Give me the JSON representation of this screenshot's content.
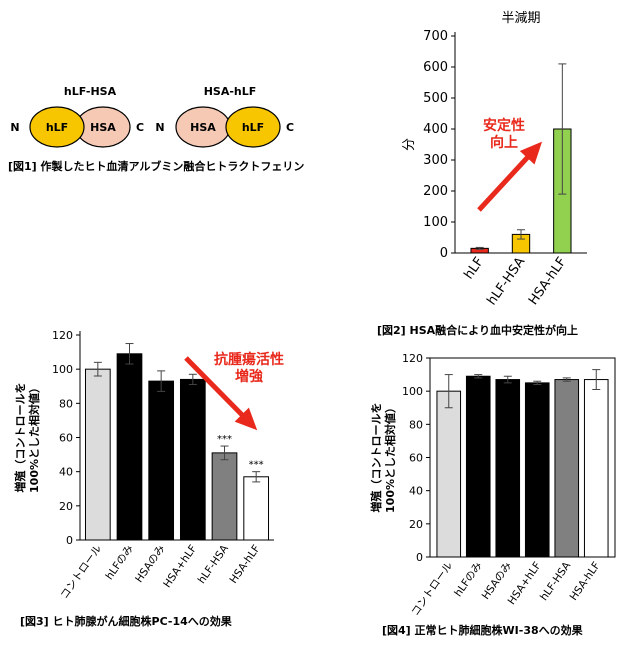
{
  "fig1": {
    "caption": "[図1] 作製したヒト血清アルブミン融合ヒトラクトフェリン",
    "constructs": [
      {
        "title": "hLF-HSA",
        "n_label": "N",
        "c_label": "C",
        "domains": [
          {
            "label": "hLF",
            "color": "#f7c600"
          },
          {
            "label": "HSA",
            "color": "#f5c9b4"
          }
        ]
      },
      {
        "title": "HSA-hLF",
        "n_label": "N",
        "c_label": "C",
        "domains": [
          {
            "label": "HSA",
            "color": "#f5c9b4"
          },
          {
            "label": "hLF",
            "color": "#f7c600"
          }
        ]
      }
    ]
  },
  "chart_data": [
    {
      "id": "fig2",
      "type": "bar",
      "title": "半減期",
      "ylabel": "分",
      "xlabel": "",
      "ylim": [
        0,
        700
      ],
      "yticks": [
        0,
        100,
        200,
        300,
        400,
        500,
        600,
        700
      ],
      "categories": [
        "hLF",
        "hLF-HSA",
        "HSA-hLF"
      ],
      "values": [
        15,
        60,
        400
      ],
      "errors": [
        3,
        15,
        210
      ],
      "colors": [
        "#e8291c",
        "#f7c600",
        "#92d050"
      ],
      "annotation": [
        "安定性",
        "向上"
      ],
      "caption": "[図2] HSA融合により血中安定性が向上"
    },
    {
      "id": "fig3",
      "type": "bar",
      "title": "",
      "ylabel": "増殖（コントロールを100%とした相対値）",
      "xlabel": "",
      "ylim": [
        0,
        120
      ],
      "yticks": [
        0,
        20,
        40,
        60,
        80,
        100,
        120
      ],
      "categories": [
        "コントロール",
        "hLFのみ",
        "HSAのみ",
        "HSA+hLF",
        "hLF-HSA",
        "HSA-hLF"
      ],
      "values": [
        100,
        109,
        93,
        94,
        51,
        37
      ],
      "errors": [
        4,
        6,
        6,
        3,
        4,
        3
      ],
      "colors": [
        "#dcdcdc",
        "#000000",
        "#000000",
        "#000000",
        "#808080",
        "#ffffff"
      ],
      "significance": [
        "",
        "",
        "",
        "",
        "***",
        "***"
      ],
      "annotation": [
        "抗腫瘍活性",
        "増強"
      ],
      "caption": "[図3] ヒト肺腺がん細胞株PC-14への効果"
    },
    {
      "id": "fig4",
      "type": "bar",
      "title": "",
      "ylabel": "増殖（コントロールを100%とした相対値）",
      "xlabel": "",
      "ylim": [
        0,
        120
      ],
      "yticks": [
        0,
        20,
        40,
        60,
        80,
        100,
        120
      ],
      "categories": [
        "コントロール",
        "hLFのみ",
        "HSAのみ",
        "HSA+hLF",
        "hLF-HSA",
        "HSA-hLF"
      ],
      "values": [
        100,
        109,
        107,
        105,
        107,
        107
      ],
      "errors": [
        10,
        1,
        2,
        1,
        1,
        6
      ],
      "colors": [
        "#dcdcdc",
        "#000000",
        "#000000",
        "#000000",
        "#808080",
        "#ffffff"
      ],
      "caption": "[図4] 正常ヒト肺細胞株WI-38への効果"
    }
  ]
}
